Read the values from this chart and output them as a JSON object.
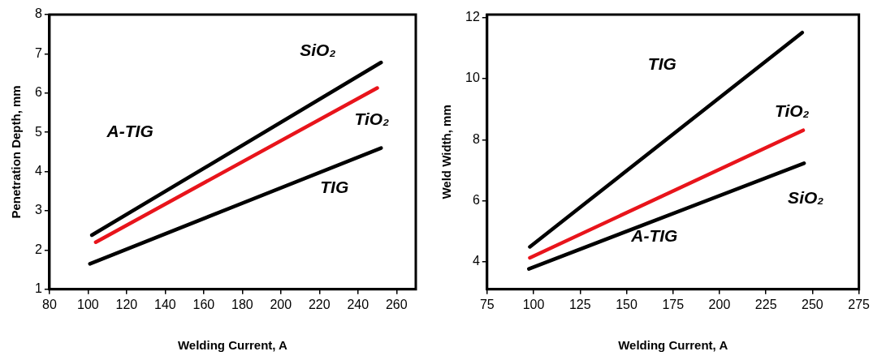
{
  "chart_data": [
    {
      "type": "line",
      "xlabel": "Welding Current, A",
      "ylabel": "Penetration Depth, mm",
      "xlim": [
        80,
        270
      ],
      "xticks": [
        80,
        100,
        120,
        140,
        160,
        180,
        200,
        220,
        240,
        260
      ],
      "ylim": [
        1,
        8
      ],
      "yticks": [
        1,
        2,
        3,
        4,
        5,
        6,
        7,
        8
      ],
      "grid": false,
      "legend": false,
      "marker": "none",
      "line_style": "solid",
      "series": [
        {
          "name": "SiO₂",
          "color": "#000000",
          "x": [
            102,
            252
          ],
          "values": [
            2.38,
            6.78
          ]
        },
        {
          "name": "TiO₂",
          "color": "#e8141b",
          "x": [
            104,
            250
          ],
          "values": [
            2.2,
            6.13
          ]
        },
        {
          "name": "TIG",
          "color": "#000000",
          "x": [
            101,
            252
          ],
          "values": [
            1.65,
            4.6
          ]
        }
      ],
      "annotations": [
        "A-TIG"
      ]
    },
    {
      "type": "line",
      "xlabel": "Welding Current, A",
      "ylabel": "Weld Width, mm",
      "xlim": [
        75,
        275
      ],
      "xticks": [
        75,
        100,
        125,
        150,
        175,
        200,
        225,
        250,
        275
      ],
      "ylim": [
        3.1,
        12.1
      ],
      "yticks": [
        4,
        6,
        8,
        10,
        12
      ],
      "grid": false,
      "legend": false,
      "marker": "none",
      "line_style": "solid",
      "series": [
        {
          "name": "TIG",
          "color": "#000000",
          "x": [
            98,
            244.5
          ],
          "values": [
            4.49,
            11.51
          ]
        },
        {
          "name": "TiO₂",
          "color": "#e8141b",
          "x": [
            98,
            245
          ],
          "values": [
            4.13,
            8.31
          ]
        },
        {
          "name": "SiO₂",
          "color": "#000000",
          "x": [
            97.5,
            245.5
          ],
          "values": [
            3.77,
            7.23
          ]
        }
      ],
      "annotations": [
        "A-TIG"
      ]
    }
  ]
}
